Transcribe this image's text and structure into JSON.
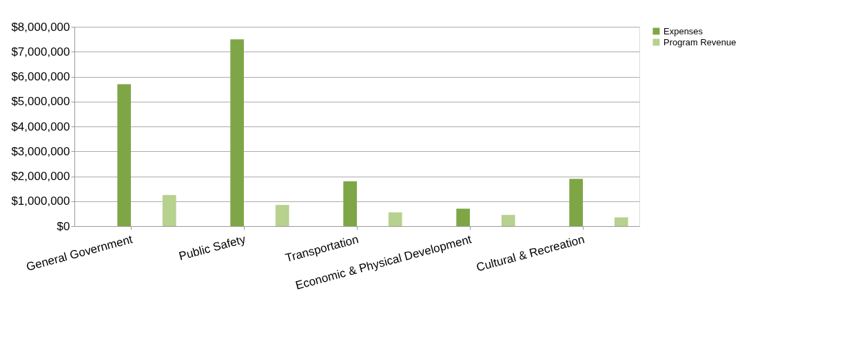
{
  "chart_data": {
    "type": "bar",
    "categories": [
      "General Government",
      "Public Safety",
      "Transportation",
      "Economic & Physical Development",
      "Cultural & Recreation"
    ],
    "series": [
      {
        "name": "Expenses",
        "color": "#7ea646",
        "values": [
          5700000,
          7500000,
          1800000,
          700000,
          1900000
        ]
      },
      {
        "name": "Program Revenue",
        "color": "#b7d18e",
        "values": [
          1250000,
          850000,
          550000,
          450000,
          350000
        ]
      }
    ],
    "ylim": [
      0,
      8000000
    ],
    "yticks": [
      {
        "value": 0,
        "label": "$0"
      },
      {
        "value": 1000000,
        "label": "$1,000,000"
      },
      {
        "value": 2000000,
        "label": "$2,000,000"
      },
      {
        "value": 3000000,
        "label": "$3,000,000"
      },
      {
        "value": 4000000,
        "label": "$4,000,000"
      },
      {
        "value": 5000000,
        "label": "$5,000,000"
      },
      {
        "value": 6000000,
        "label": "$6,000,000"
      },
      {
        "value": 7000000,
        "label": "$7,000,000"
      },
      {
        "value": 8000000,
        "label": "$8,000,000"
      }
    ],
    "grid": "y",
    "legend": "right"
  }
}
